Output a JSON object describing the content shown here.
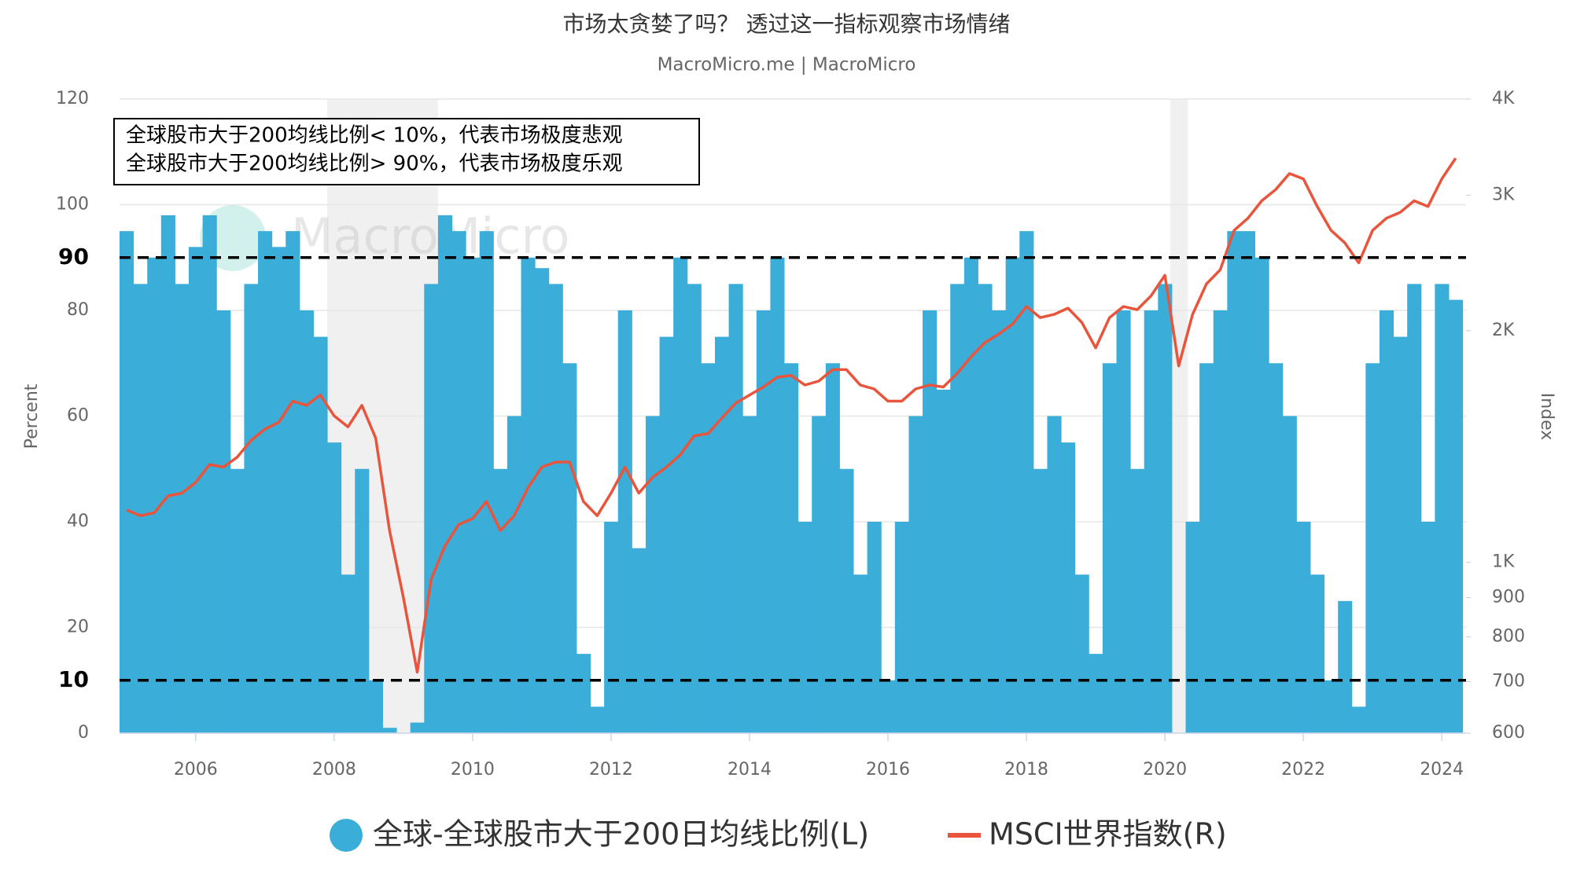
{
  "chart_data": {
    "type": "bar_line",
    "title": "市场太贪婪了吗？ 透过这一指标观察市场情绪",
    "subtitle": "MacroMicro.me | MacroMicro",
    "watermark": "MacroMicro",
    "annotation": [
      "全球股市大于200均线比例< 10%，代表市场极度悲观",
      "全球股市大于200均线比例> 90%，代表市场极度乐观"
    ],
    "y_label": "Percent",
    "y2_label": "Index",
    "x": [
      2005.0,
      2005.2,
      2005.4,
      2005.6,
      2005.8,
      2006.0,
      2006.2,
      2006.4,
      2006.6,
      2006.8,
      2007.0,
      2007.2,
      2007.4,
      2007.6,
      2007.8,
      2008.0,
      2008.2,
      2008.4,
      2008.6,
      2008.8,
      2009.0,
      2009.2,
      2009.4,
      2009.6,
      2009.8,
      2010.0,
      2010.2,
      2010.4,
      2010.6,
      2010.8,
      2011.0,
      2011.2,
      2011.4,
      2011.6,
      2011.8,
      2012.0,
      2012.2,
      2012.4,
      2012.6,
      2012.8,
      2013.0,
      2013.2,
      2013.4,
      2013.6,
      2013.8,
      2014.0,
      2014.2,
      2014.4,
      2014.6,
      2014.8,
      2015.0,
      2015.2,
      2015.4,
      2015.6,
      2015.8,
      2016.0,
      2016.2,
      2016.4,
      2016.6,
      2016.8,
      2017.0,
      2017.2,
      2017.4,
      2017.6,
      2017.8,
      2018.0,
      2018.2,
      2018.4,
      2018.6,
      2018.8,
      2019.0,
      2019.2,
      2019.4,
      2019.6,
      2019.8,
      2020.0,
      2020.2,
      2020.4,
      2020.6,
      2020.8,
      2021.0,
      2021.2,
      2021.4,
      2021.6,
      2021.8,
      2022.0,
      2022.2,
      2022.4,
      2022.6,
      2022.8,
      2023.0,
      2023.2,
      2023.4,
      2023.6,
      2023.8,
      2024.0,
      2024.2
    ],
    "series": [
      {
        "name": "全球-全球股市大于200日均线比例(L)",
        "color": "#3badd9",
        "kind": "bar",
        "values": [
          95,
          85,
          90,
          98,
          85,
          92,
          98,
          80,
          50,
          85,
          95,
          92,
          95,
          80,
          75,
          55,
          30,
          50,
          10,
          1,
          0,
          2,
          85,
          98,
          95,
          90,
          95,
          50,
          60,
          90,
          88,
          85,
          70,
          15,
          5,
          40,
          80,
          35,
          60,
          75,
          90,
          85,
          70,
          75,
          85,
          60,
          80,
          90,
          70,
          40,
          60,
          70,
          50,
          30,
          40,
          10,
          40,
          60,
          80,
          65,
          85,
          90,
          85,
          80,
          90,
          95,
          50,
          60,
          55,
          30,
          15,
          70,
          80,
          50,
          80,
          85,
          0,
          40,
          70,
          80,
          95,
          95,
          90,
          70,
          60,
          40,
          30,
          10,
          25,
          5,
          70,
          80,
          75,
          85,
          40,
          85,
          82
        ]
      },
      {
        "name": "MSCI世界指数(R)",
        "color": "#e8553c",
        "kind": "line",
        "axis": "y2",
        "values": [
          1170,
          1150,
          1160,
          1220,
          1230,
          1270,
          1340,
          1330,
          1370,
          1440,
          1490,
          1520,
          1620,
          1600,
          1650,
          1550,
          1500,
          1600,
          1450,
          1100,
          900,
          720,
          950,
          1050,
          1120,
          1140,
          1200,
          1100,
          1150,
          1250,
          1330,
          1350,
          1350,
          1200,
          1150,
          1230,
          1330,
          1230,
          1290,
          1330,
          1380,
          1460,
          1470,
          1540,
          1610,
          1650,
          1690,
          1740,
          1750,
          1700,
          1720,
          1780,
          1780,
          1700,
          1680,
          1620,
          1620,
          1680,
          1700,
          1690,
          1760,
          1850,
          1930,
          1980,
          2040,
          2150,
          2080,
          2100,
          2140,
          2050,
          1900,
          2080,
          2150,
          2130,
          2220,
          2360,
          1800,
          2100,
          2300,
          2400,
          2700,
          2800,
          2950,
          3050,
          3200,
          3150,
          2900,
          2700,
          2600,
          2450,
          2700,
          2800,
          2850,
          2950,
          2900,
          3150,
          3350
        ]
      }
    ],
    "shaded_ranges": [
      [
        2007.9,
        2009.5
      ],
      [
        2020.08,
        2020.33
      ]
    ],
    "xlim": [
      2004.9,
      2024.35
    ],
    "xticks": [
      2006,
      2008,
      2010,
      2012,
      2014,
      2016,
      2018,
      2020,
      2022,
      2024
    ],
    "ylim": [
      0,
      120
    ],
    "yticks": [
      0,
      20,
      40,
      60,
      80,
      100,
      120
    ],
    "reference_lines": [
      10,
      90
    ],
    "y2lim": [
      600,
      4000
    ],
    "y2ticks": [
      600,
      700,
      800,
      900,
      {
        "value": 1000,
        "label": "1K"
      },
      {
        "value": 2000,
        "label": "2K"
      },
      {
        "value": 3000,
        "label": "3K"
      },
      {
        "value": 4000,
        "label": "4K"
      }
    ],
    "y2_log": true,
    "grid": true
  }
}
